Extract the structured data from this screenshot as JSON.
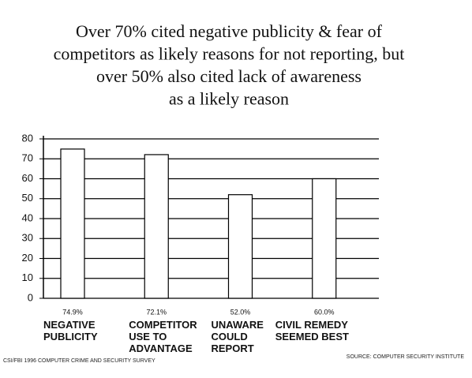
{
  "chart_data": {
    "type": "bar",
    "title": [
      "Over 70% cited negative publicity & fear of",
      "competitors as likely reasons for not reporting, but",
      "over 50% also cited lack of awareness",
      "as a likely reason"
    ],
    "categories": [
      "NEGATIVE PUBLICITY",
      "COMPETITOR USE TO ADVANTAGE",
      "UNAWARE COULD REPORT",
      "CIVIL REMEDY SEEMED BEST"
    ],
    "values": [
      74.9,
      72.1,
      52.0,
      60.0
    ],
    "value_labels": [
      "74.9%",
      "72.1%",
      "52.0%",
      "60.0%"
    ],
    "color": "#ffffff",
    "ylim": [
      0,
      80
    ],
    "yticks": [
      0,
      10,
      20,
      30,
      40,
      50,
      60,
      70,
      80
    ],
    "grid": true,
    "note": "CSI/FBI 1996 COMPUTER CRIME AND SECURITY SURVEY",
    "source": "SOURCE: COMPUTER SECURITY INSTITUTE"
  }
}
